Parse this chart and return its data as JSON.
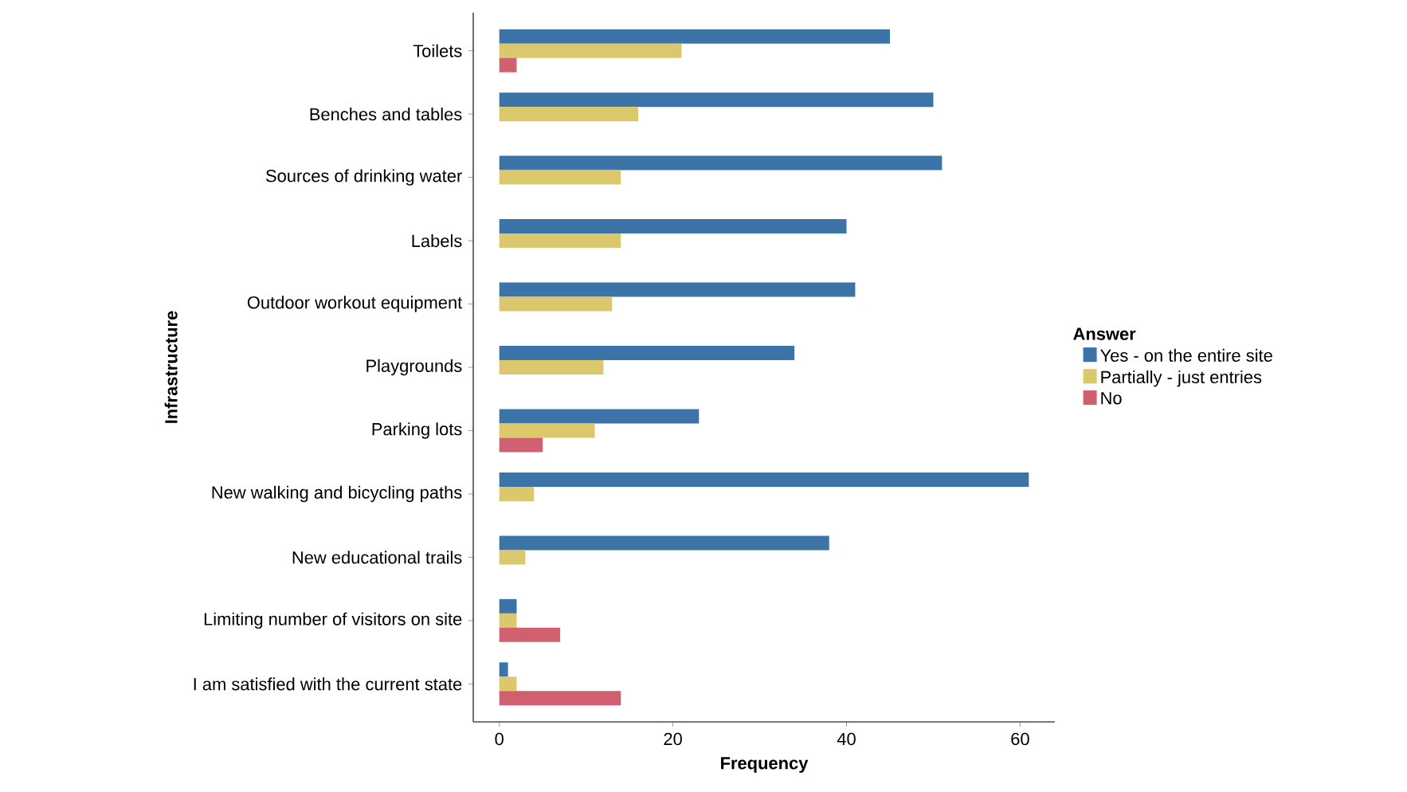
{
  "chart_data": {
    "type": "bar",
    "orientation": "horizontal",
    "xlabel": "Frequency",
    "ylabel": "Infrastructure",
    "legend_title": "Answer",
    "legend": "right",
    "grid": false,
    "categories": [
      "Toilets",
      "Benches and tables",
      "Sources of drinking water",
      "Labels",
      "Outdoor workout equipment",
      "Playgrounds",
      "Parking lots",
      "New walking and bicycling paths",
      "New educational trails",
      "Limiting number of visitors on site",
      "I am satisfied with the current state"
    ],
    "xlim": [
      -3,
      64
    ],
    "xticks": [
      0,
      20,
      40,
      60
    ],
    "series": [
      {
        "name": "Yes - on the entire site",
        "color": "#3d74a8",
        "values": [
          45,
          50,
          51,
          40,
          41,
          34,
          23,
          61,
          38,
          2,
          1
        ]
      },
      {
        "name": "Partially - just entries",
        "color": "#dcc86c",
        "values": [
          21,
          16,
          14,
          14,
          13,
          12,
          11,
          4,
          3,
          2,
          2
        ]
      },
      {
        "name": "No",
        "color": "#d0606f",
        "values": [
          2,
          null,
          null,
          null,
          null,
          null,
          5,
          null,
          null,
          7,
          14
        ]
      }
    ]
  }
}
